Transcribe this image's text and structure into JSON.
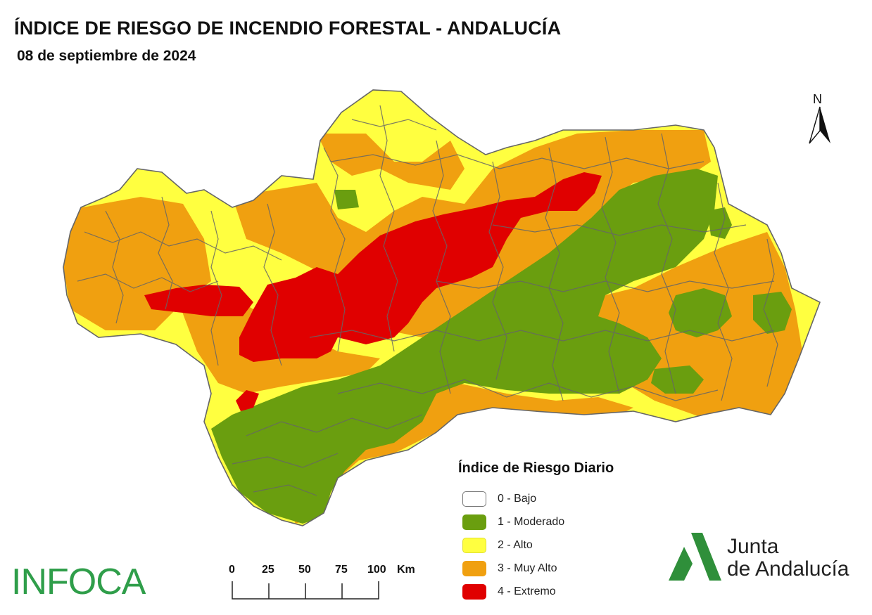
{
  "header": {
    "title": "ÍNDICE DE RIESGO DE INCENDIO FORESTAL - ANDALUCÍA",
    "date": "08 de septiembre de 2024"
  },
  "north_arrow": {
    "label": "N"
  },
  "legend": {
    "title": "Índice de Riesgo Diario",
    "items": [
      {
        "label": "0 - Bajo",
        "color": "#ffffff"
      },
      {
        "label": "1 - Moderado",
        "color": "#6a9e0f"
      },
      {
        "label": "2 - Alto",
        "color": "#ffff40"
      },
      {
        "label": "3 - Muy Alto",
        "color": "#f0a010"
      },
      {
        "label": "4 - Extremo",
        "color": "#e00000"
      }
    ]
  },
  "scale_bar": {
    "ticks": [
      "0",
      "25",
      "50",
      "75",
      "100"
    ],
    "unit": "Km"
  },
  "logos": {
    "infoca": "INFOCA",
    "junta_line1": "Junta",
    "junta_line2": "de Andalucía",
    "junta_color": "#2f8f3a"
  },
  "map_colors": {
    "boundary": "#666666",
    "moderado": "#6a9e0f",
    "alto": "#ffff40",
    "muy_alto": "#f0a010",
    "extremo": "#e00000"
  }
}
